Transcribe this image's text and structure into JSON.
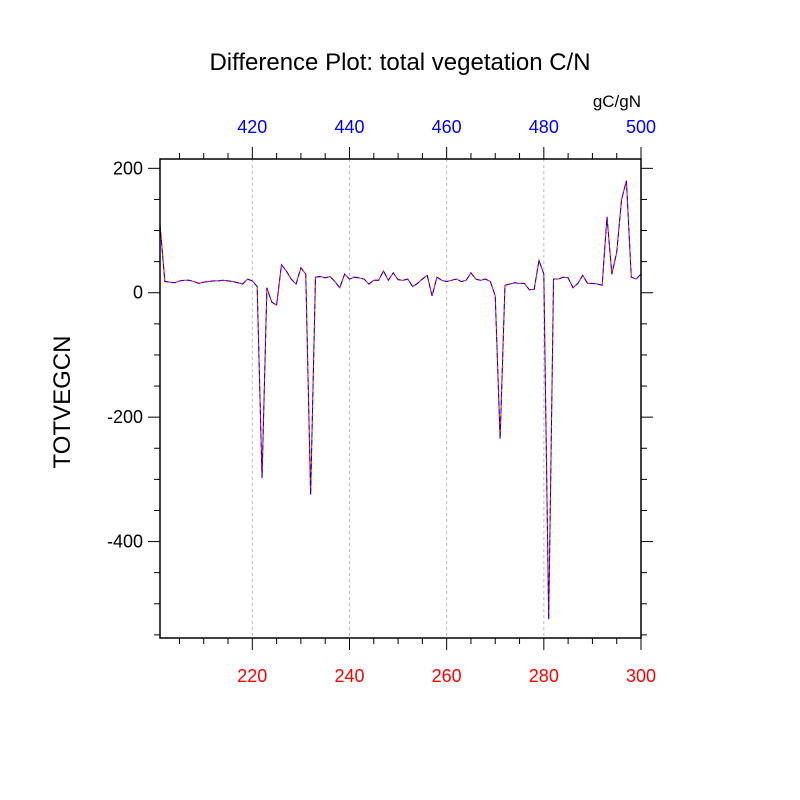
{
  "colors": {
    "red": "#ff0000",
    "blue": "#0000ff",
    "grid": "#bbbbbb",
    "frame": "#000000"
  },
  "chart_data": {
    "type": "line",
    "title": "Difference Plot: total vegetation C/N",
    "units": "gC/gN",
    "ylabel": "TOTVEGCN",
    "xlabel": "",
    "ylim": [
      -555,
      215
    ],
    "y_ticks": [
      200,
      0,
      -200,
      -400
    ],
    "bottom_axis": {
      "range": [
        201,
        300
      ],
      "ticks": [
        220,
        240,
        260,
        280,
        300
      ],
      "color": "red"
    },
    "top_axis": {
      "range": [
        401,
        500
      ],
      "ticks": [
        420,
        440,
        460,
        480,
        500
      ],
      "color": "blue"
    },
    "grid": "dotted vertical lines at major x ticks",
    "series": [
      {
        "color": "red",
        "style": "solid",
        "axis": "bottom",
        "x": [
          201,
          202,
          203,
          204,
          205,
          206,
          207,
          208,
          209,
          210,
          211,
          212,
          213,
          214,
          215,
          216,
          217,
          218,
          219,
          220,
          221,
          222,
          223,
          224,
          225,
          226,
          227,
          228,
          229,
          230,
          231,
          232,
          233,
          234,
          235,
          236,
          237,
          238,
          239,
          240,
          241,
          242,
          243,
          244,
          245,
          246,
          247,
          248,
          249,
          250,
          251,
          252,
          253,
          254,
          255,
          256,
          257,
          258,
          259,
          260,
          261,
          262,
          263,
          264,
          265,
          266,
          267,
          268,
          269,
          270,
          271,
          272,
          273,
          274,
          275,
          276,
          277,
          278,
          279,
          280,
          281,
          282,
          283,
          284,
          285,
          286,
          287,
          288,
          289,
          290,
          291,
          292,
          293,
          294,
          295,
          296,
          297,
          298,
          299,
          300
        ],
        "values": [
          110,
          18,
          17,
          16,
          19,
          20,
          20,
          18,
          15,
          17,
          18,
          19,
          19,
          20,
          19,
          18,
          16,
          14,
          22,
          19,
          10,
          -298,
          8,
          -15,
          -20,
          45,
          35,
          22,
          14,
          40,
          30,
          -325,
          25,
          26,
          24,
          26,
          18,
          8,
          30,
          22,
          25,
          24,
          22,
          14,
          20,
          20,
          35,
          20,
          32,
          21,
          20,
          22,
          10,
          15,
          22,
          28,
          -5,
          25,
          20,
          18,
          20,
          22,
          18,
          20,
          32,
          22,
          20,
          22,
          18,
          -5,
          -235,
          12,
          14,
          16,
          15,
          15,
          5,
          5,
          52,
          30,
          -525,
          22,
          22,
          25,
          24,
          8,
          15,
          28,
          15,
          15,
          14,
          12,
          122,
          30,
          65,
          150,
          180,
          25,
          22,
          30
        ]
      },
      {
        "color": "blue",
        "style": "dashed",
        "axis": "top",
        "x": [
          401,
          402,
          403,
          404,
          405,
          406,
          407,
          408,
          409,
          410,
          411,
          412,
          413,
          414,
          415,
          416,
          417,
          418,
          419,
          420,
          421,
          422,
          423,
          424,
          425,
          426,
          427,
          428,
          429,
          430,
          431,
          432,
          433,
          434,
          435,
          436,
          437,
          438,
          439,
          440,
          441,
          442,
          443,
          444,
          445,
          446,
          447,
          448,
          449,
          450,
          451,
          452,
          453,
          454,
          455,
          456,
          457,
          458,
          459,
          460,
          461,
          462,
          463,
          464,
          465,
          466,
          467,
          468,
          469,
          470,
          471,
          472,
          473,
          474,
          475,
          476,
          477,
          478,
          479,
          480,
          481,
          482,
          483,
          484,
          485,
          486,
          487,
          488,
          489,
          490,
          491,
          492,
          493,
          494,
          495,
          496,
          497,
          498,
          499,
          500
        ],
        "values": [
          110,
          18,
          17,
          16,
          19,
          20,
          20,
          18,
          15,
          17,
          18,
          19,
          19,
          20,
          19,
          18,
          16,
          14,
          22,
          19,
          10,
          -298,
          8,
          -15,
          -20,
          45,
          35,
          22,
          14,
          40,
          30,
          -325,
          25,
          26,
          24,
          26,
          18,
          8,
          30,
          22,
          25,
          24,
          22,
          14,
          20,
          20,
          35,
          20,
          32,
          21,
          20,
          22,
          10,
          15,
          22,
          28,
          -5,
          25,
          20,
          18,
          20,
          22,
          18,
          20,
          32,
          22,
          20,
          22,
          18,
          -5,
          -235,
          12,
          14,
          16,
          15,
          15,
          5,
          5,
          52,
          30,
          -525,
          22,
          22,
          25,
          24,
          8,
          15,
          28,
          15,
          15,
          14,
          12,
          122,
          30,
          65,
          150,
          180,
          25,
          22,
          30
        ]
      }
    ]
  }
}
